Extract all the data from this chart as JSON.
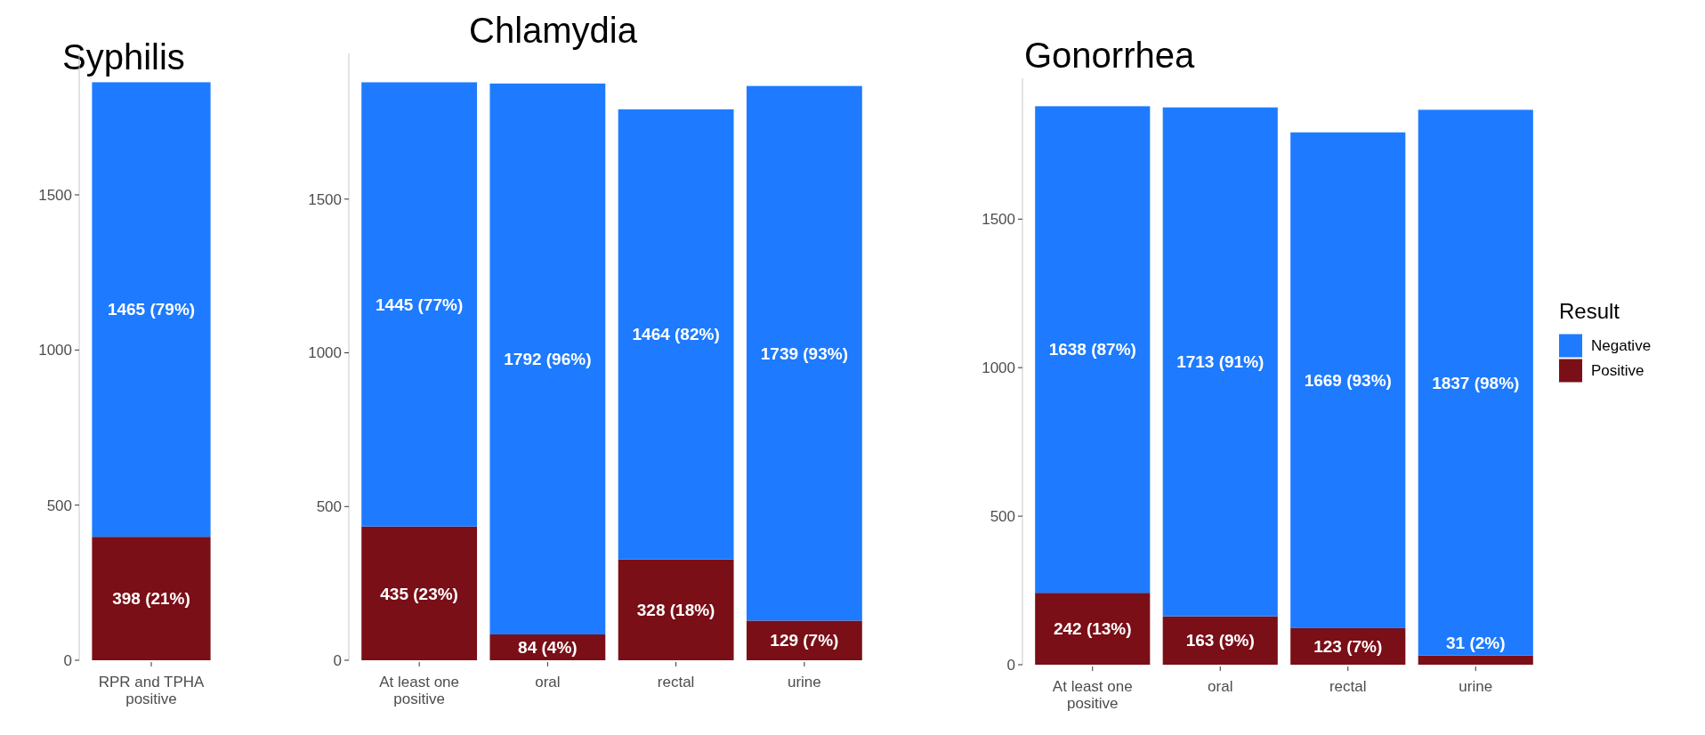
{
  "chart_data": [
    {
      "type": "bar",
      "title": "Syphilis",
      "stacked": true,
      "categories": [
        "RPR and TPHA positive"
      ],
      "ylim": [
        0,
        1956
      ],
      "yticks": [
        0,
        500,
        1000,
        1500
      ],
      "series": [
        {
          "color": "#7a0f17",
          "values": [
            398
          ],
          "value_labels": [
            "398 (21%)"
          ]
        },
        {
          "color": "#1e7bff",
          "values": [
            1465
          ],
          "value_labels": [
            "1465 (79%)"
          ]
        }
      ]
    },
    {
      "type": "bar",
      "title": "Chlamydia",
      "stacked": true,
      "categories": [
        "At least one positive",
        "oral",
        "rectal",
        "urine"
      ],
      "ylim": [
        0,
        1974
      ],
      "yticks": [
        0,
        500,
        1000,
        1500
      ],
      "series": [
        {
          "color": "#7a0f17",
          "values": [
            435,
            84,
            328,
            129
          ],
          "value_labels": [
            "435 (23%)",
            "84 (4%)",
            "328 (18%)",
            "129 (7%)"
          ]
        },
        {
          "color": "#1e7bff",
          "values": [
            1445,
            1792,
            1464,
            1739
          ],
          "value_labels": [
            "1445 (77%)",
            "1792 (96%)",
            "1464 (82%)",
            "1739 (93%)"
          ]
        }
      ]
    },
    {
      "type": "bar",
      "title": "Gonorrhea",
      "stacked": true,
      "categories": [
        "At least one positive",
        "oral",
        "rectal",
        "urine"
      ],
      "ylim": [
        0,
        1974
      ],
      "yticks": [
        0,
        500,
        1000,
        1500
      ],
      "legend": "right",
      "legend_title": "Result",
      "series": [
        {
          "name": "Positive",
          "color": "#7a0f17",
          "values": [
            242,
            163,
            123,
            31
          ],
          "value_labels": [
            "242 (13%)",
            "163 (9%)",
            "123 (7%)",
            "31 (2%)"
          ]
        },
        {
          "name": "Negative",
          "color": "#1e7bff",
          "values": [
            1638,
            1713,
            1669,
            1837
          ],
          "value_labels": [
            "1638 (87%)",
            "1713 (91%)",
            "1669 (93%)",
            "1837 (98%)"
          ]
        }
      ]
    }
  ]
}
